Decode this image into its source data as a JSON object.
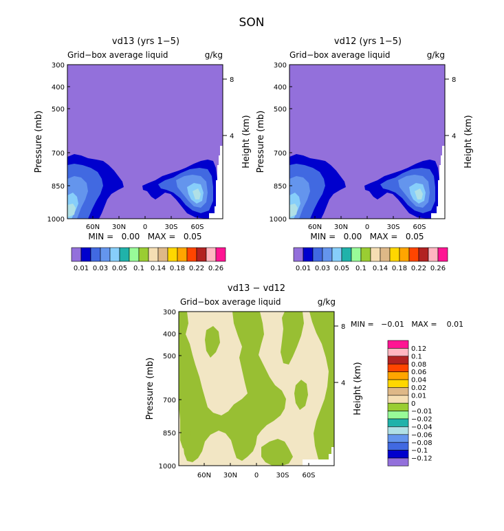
{
  "figure_title": "SON",
  "colors": {
    "purple": "#9370DB",
    "navy": "#0000CD",
    "royal": "#4169E1",
    "cornflower": "#6495ED",
    "lightblue": "#87CEFA",
    "paleblue": "#B0E0E6",
    "teal": "#20B2AA",
    "lightgreen": "#98FB98",
    "olive": "#9ACD32",
    "wheat": "#F5DEB3",
    "tan": "#DEB887",
    "gold": "#FFD700",
    "orange": "#FFA500",
    "orangered": "#FF4500",
    "firebrick": "#B22222",
    "pink": "#FFB6C1",
    "deeppink": "#FF1493",
    "diff_green": "#98BF33",
    "diff_cream": "#F2E6C4"
  },
  "chart_data": [
    {
      "id": "panel-vd13",
      "type": "contour",
      "title": "vd13 (yrs 1−5)",
      "subtitle": "Grid−box average liquid",
      "units": "g/kg",
      "ylabel": "Pressure (mb)",
      "y2label": "Height (km)",
      "x_ticks": [
        "60N",
        "30N",
        "0",
        "30S",
        "60S"
      ],
      "x_tick_lat": [
        60,
        30,
        0,
        -30,
        -60
      ],
      "xlim": [
        90,
        -90
      ],
      "y_ticks": [
        300,
        400,
        500,
        700,
        850,
        1000
      ],
      "ylim": [
        1000,
        300
      ],
      "y2_ticks": [
        "8",
        "4"
      ],
      "y2_tick_pressure": [
        356,
        616
      ],
      "stats": "MIN =   0.00   MAX =   0.05",
      "colorbar_labels": [
        "0.01",
        "0.03",
        "0.05",
        "0.1",
        "0.14",
        "0.18",
        "0.22",
        "0.26"
      ],
      "colorbar_colors": [
        "purple",
        "navy",
        "royal",
        "cornflower",
        "lightblue",
        "teal",
        "lightgreen",
        "olive",
        "wheat",
        "tan",
        "gold",
        "orange",
        "orangered",
        "firebrick",
        "pink",
        "deeppink"
      ]
    },
    {
      "id": "panel-vd12",
      "type": "contour",
      "title": "vd12 (yrs 1−5)",
      "subtitle": "Grid−box average liquid",
      "units": "g/kg",
      "ylabel": "Pressure (mb)",
      "y2label": "Height (km)",
      "x_ticks": [
        "60N",
        "30N",
        "0",
        "30S",
        "60S"
      ],
      "x_tick_lat": [
        60,
        30,
        0,
        -30,
        -60
      ],
      "xlim": [
        90,
        -90
      ],
      "y_ticks": [
        300,
        400,
        500,
        700,
        850,
        1000
      ],
      "ylim": [
        1000,
        300
      ],
      "y2_ticks": [
        "8",
        "4"
      ],
      "y2_tick_pressure": [
        356,
        616
      ],
      "stats": "MIN =   0.00   MAX =   0.05",
      "colorbar_labels": [
        "0.01",
        "0.03",
        "0.05",
        "0.1",
        "0.14",
        "0.18",
        "0.22",
        "0.26"
      ],
      "colorbar_colors": [
        "purple",
        "navy",
        "royal",
        "cornflower",
        "lightblue",
        "teal",
        "lightgreen",
        "olive",
        "wheat",
        "tan",
        "gold",
        "orange",
        "orangered",
        "firebrick",
        "pink",
        "deeppink"
      ]
    },
    {
      "id": "panel-diff",
      "type": "contour",
      "title": "vd13 − vd12",
      "subtitle": "Grid−box average liquid",
      "units": "g/kg",
      "ylabel": "Pressure (mb)",
      "y2label": "Height (km)",
      "x_ticks": [
        "60N",
        "30N",
        "0",
        "30S",
        "60S"
      ],
      "x_tick_lat": [
        60,
        30,
        0,
        -30,
        -60
      ],
      "xlim": [
        90,
        -90
      ],
      "y_ticks": [
        300,
        400,
        500,
        700,
        850,
        1000
      ],
      "ylim": [
        1000,
        300
      ],
      "y2_ticks": [
        "8",
        "4"
      ],
      "y2_tick_pressure": [
        356,
        616
      ],
      "stats": "MIN =   −0.01   MAX =    0.01",
      "colorbar_labels": [
        "0.12",
        "0.1",
        "0.08",
        "0.06",
        "0.04",
        "0.02",
        "0.01",
        "0",
        "−0.01",
        "−0.02",
        "−0.04",
        "−0.06",
        "−0.08",
        "−0.1",
        "−0.12"
      ],
      "colorbar_colors": [
        "deeppink",
        "pink",
        "firebrick",
        "orangered",
        "orange",
        "gold",
        "tan",
        "wheat",
        "olive",
        "lightgreen",
        "teal",
        "paleblue",
        "cornflower",
        "royal",
        "navy",
        "purple"
      ]
    }
  ]
}
